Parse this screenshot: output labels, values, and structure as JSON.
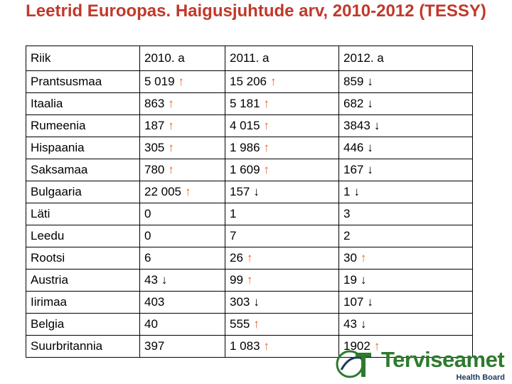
{
  "title": "Leetrid Euroopas. Haigusjuhtude arv, 2010-2012 (TESSY)",
  "colors": {
    "title": "#c0392b",
    "up_arrow": "#e4632f",
    "down_arrow": "#000000",
    "logo_green": "#2e7a2e"
  },
  "table": {
    "headers": [
      "Riik",
      "2010. a",
      "2011. a",
      "2012. a"
    ],
    "rows": [
      {
        "country": "Prantsusmaa",
        "cells": [
          {
            "v": "5 019",
            "a": "↑",
            "d": "up"
          },
          {
            "v": "15 206",
            "a": "↑",
            "d": "up"
          },
          {
            "v": "859",
            "a": "↓",
            "d": "down"
          }
        ]
      },
      {
        "country": "Itaalia",
        "cells": [
          {
            "v": "863",
            "a": "↑",
            "d": "up"
          },
          {
            "v": "5 181",
            "a": "↑",
            "d": "up"
          },
          {
            "v": "682",
            "a": "↓",
            "d": "down"
          }
        ]
      },
      {
        "country": "Rumeenia",
        "cells": [
          {
            "v": "187",
            "a": "↑",
            "d": "up"
          },
          {
            "v": "4 015",
            "a": "↑",
            "d": "up"
          },
          {
            "v": "3843",
            "a": "↓",
            "d": "down"
          }
        ]
      },
      {
        "country": "Hispaania",
        "cells": [
          {
            "v": "305",
            "a": "↑",
            "d": "up"
          },
          {
            "v": "1 986",
            "a": "↑",
            "d": "up"
          },
          {
            "v": "446",
            "a": "↓",
            "d": "down"
          }
        ]
      },
      {
        "country": "Saksamaa",
        "cells": [
          {
            "v": "780",
            "a": "↑",
            "d": "up"
          },
          {
            "v": "1 609",
            "a": "↑",
            "d": "up"
          },
          {
            "v": "167",
            "a": "↓",
            "d": "down"
          }
        ]
      },
      {
        "country": "Bulgaaria",
        "cells": [
          {
            "v": "22 005",
            "a": "↑",
            "d": "up"
          },
          {
            "v": "157",
            "a": "↓",
            "d": "down"
          },
          {
            "v": "1",
            "a": "↓",
            "d": "down"
          }
        ]
      },
      {
        "country": "Läti",
        "cells": [
          {
            "v": "0",
            "a": "",
            "d": ""
          },
          {
            "v": "1",
            "a": "",
            "d": ""
          },
          {
            "v": "3",
            "a": "",
            "d": ""
          }
        ]
      },
      {
        "country": "Leedu",
        "cells": [
          {
            "v": "0",
            "a": "",
            "d": ""
          },
          {
            "v": "7",
            "a": "",
            "d": ""
          },
          {
            "v": "2",
            "a": "",
            "d": ""
          }
        ]
      },
      {
        "country": "Rootsi",
        "cells": [
          {
            "v": "6",
            "a": "",
            "d": ""
          },
          {
            "v": "26",
            "a": "↑",
            "d": "up"
          },
          {
            "v": "30",
            "a": "↑",
            "d": "up"
          }
        ]
      },
      {
        "country": "Austria",
        "cells": [
          {
            "v": "43",
            "a": "↓",
            "d": "down"
          },
          {
            "v": "99",
            "a": "↑",
            "d": "up"
          },
          {
            "v": "19",
            "a": "↓",
            "d": "down"
          }
        ]
      },
      {
        "country": "Iirimaa",
        "cells": [
          {
            "v": "403",
            "a": "",
            "d": ""
          },
          {
            "v": "303",
            "a": "↓",
            "d": "down"
          },
          {
            "v": "107",
            "a": "↓",
            "d": "down"
          }
        ]
      },
      {
        "country": "Belgia",
        "cells": [
          {
            "v": "40",
            "a": "",
            "d": ""
          },
          {
            "v": "555",
            "a": "↑",
            "d": "up"
          },
          {
            "v": "43",
            "a": "↓",
            "d": "down"
          }
        ]
      },
      {
        "country": "Suurbritannia",
        "cells": [
          {
            "v": "397",
            "a": "",
            "d": ""
          },
          {
            "v": "1 083",
            "a": "↑",
            "d": "up"
          },
          {
            "v": "1902",
            "a": "↑",
            "d": "up"
          }
        ]
      }
    ]
  },
  "logo": {
    "name": "Terviseamet",
    "subtitle": "Health Board"
  }
}
